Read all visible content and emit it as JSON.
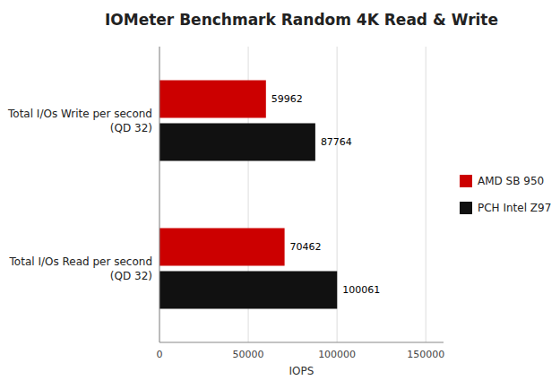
{
  "chart_data": {
    "type": "bar",
    "orientation": "horizontal",
    "title": "IOMeter Benchmark Random 4K Read & Write",
    "categories": [
      "Total I/Os Write per second\n(QD 32)",
      "Total I/Os Read per second\n(QD 32)"
    ],
    "series": [
      {
        "name": "AMD SB 950",
        "color": "#cc0000",
        "values": [
          59962,
          70462
        ]
      },
      {
        "name": "PCH Intel Z97",
        "color": "#111111",
        "values": [
          87764,
          100061
        ]
      }
    ],
    "xlim": [
      0,
      160000
    ],
    "xticks": [
      0,
      50000,
      100000,
      150000
    ],
    "xlabel": "IOPS",
    "grid": true,
    "data_labels": true,
    "legend": "right"
  }
}
